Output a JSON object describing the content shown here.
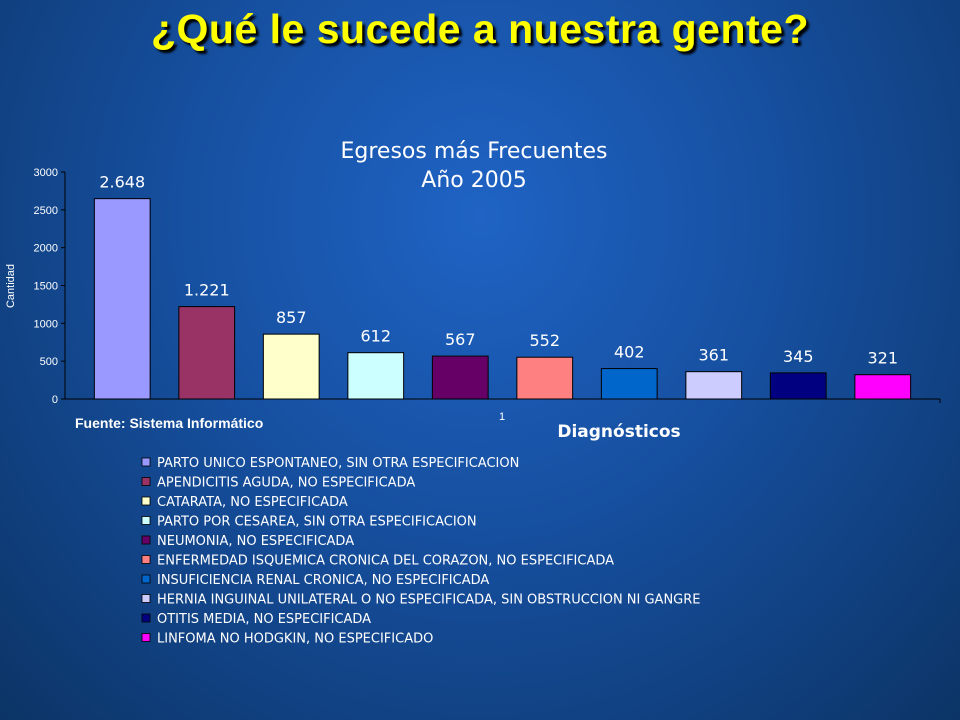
{
  "slide": {
    "title": "¿Qué le sucede a nuestra gente?"
  },
  "chart_data": {
    "type": "bar",
    "title": [
      "Egresos más Frecuentes",
      "Año 2005"
    ],
    "ylabel": "Cantidad",
    "xlabel": "Diagnósticos",
    "x_tick": "1",
    "source": "Fuente: Sistema Informático",
    "ylim": [
      0,
      3000
    ],
    "yticks": [
      0,
      500,
      1000,
      1500,
      2000,
      2500,
      3000
    ],
    "legend_position": "bottom",
    "series": [
      {
        "name": "PARTO UNICO ESPONTANEO, SIN OTRA ESPECIFICACION",
        "value": 2648,
        "label": "2.648",
        "color": "#9999ff"
      },
      {
        "name": "APENDICITIS AGUDA, NO ESPECIFICADA",
        "value": 1221,
        "label": "1.221",
        "color": "#993366"
      },
      {
        "name": "CATARATA, NO ESPECIFICADA",
        "value": 857,
        "label": "857",
        "color": "#ffffcc"
      },
      {
        "name": "PARTO POR CESAREA, SIN OTRA ESPECIFICACION",
        "value": 612,
        "label": "612",
        "color": "#ccffff"
      },
      {
        "name": "NEUMONIA, NO ESPECIFICADA",
        "value": 567,
        "label": "567",
        "color": "#660066"
      },
      {
        "name": "ENFERMEDAD ISQUEMICA CRONICA DEL CORAZON, NO ESPECIFICADA",
        "value": 552,
        "label": "552",
        "color": "#ff8080"
      },
      {
        "name": "INSUFICIENCIA RENAL CRONICA, NO ESPECIFICADA",
        "value": 402,
        "label": "402",
        "color": "#0066cc"
      },
      {
        "name": "HERNIA INGUINAL UNILATERAL O NO ESPECIFICADA, SIN OBSTRUCCION NI GANGRE",
        "value": 361,
        "label": "361",
        "color": "#ccccff"
      },
      {
        "name": "OTITIS MEDIA, NO ESPECIFICADA",
        "value": 345,
        "label": "345",
        "color": "#000080"
      },
      {
        "name": "LINFOMA NO HODGKIN, NO ESPECIFICADO",
        "value": 321,
        "label": "321",
        "color": "#ff00ff"
      }
    ]
  }
}
